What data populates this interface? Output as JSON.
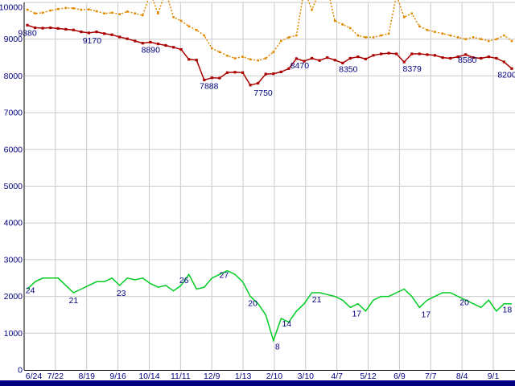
{
  "colors": {
    "background": "#ffffff",
    "grid": "#c9c9c9",
    "axis": "#000000",
    "tick_text": "#000080",
    "label_text": "#000080",
    "bottom_bar": "#000080"
  },
  "chart_data": {
    "type": "line",
    "title": "",
    "xlabel": "",
    "ylabel": "",
    "ylim": [
      0,
      10000
    ],
    "grid": true,
    "legend": "none",
    "yticks": [
      0,
      1000,
      2000,
      3000,
      4000,
      5000,
      6000,
      7000,
      8000,
      9000,
      10000
    ],
    "ytick_labels": [
      "0",
      "1000",
      "2000",
      "3000",
      "4000",
      "5000",
      "6000",
      "7000",
      "8000",
      "9000",
      "10000"
    ],
    "x_labels": [
      "6/24",
      "7/22",
      "8/19",
      "9/16",
      "10/14",
      "11/11",
      "12/9",
      "1/13",
      "2/10",
      "3/10",
      "4/7",
      "5/12",
      "6/9",
      "7/7",
      "8/4",
      "9/1"
    ],
    "series": [
      {
        "name": "upper-dashed-line",
        "color": "#e08a00",
        "style": "dashed",
        "marker": "square",
        "values": [
          9800,
          9700,
          9720,
          9780,
          9820,
          9850,
          9840,
          9800,
          9810,
          9760,
          9700,
          9720,
          9680,
          9750,
          9700,
          9650,
          10250,
          9700,
          10300,
          9600,
          9500,
          9350,
          9250,
          9100,
          8750,
          8650,
          8550,
          8480,
          8520,
          8450,
          8420,
          8480,
          8650,
          8950,
          9050,
          9100,
          10350,
          9800,
          10300,
          10400,
          9500,
          9400,
          9300,
          9100,
          9050,
          9050,
          9100,
          9150,
          10200,
          9600,
          9700,
          9350,
          9250,
          9200,
          9150,
          9100,
          9050,
          9000,
          9050,
          9000,
          8950,
          9000,
          9100,
          8950
        ],
        "labels": []
      },
      {
        "name": "main-line",
        "color": "#aa0000",
        "style": "solid",
        "marker": "square",
        "values": [
          9380,
          9310,
          9300,
          9310,
          9290,
          9270,
          9250,
          9200,
          9170,
          9200,
          9150,
          9120,
          9060,
          9010,
          8950,
          8890,
          8920,
          8870,
          8830,
          8780,
          8720,
          8450,
          8430,
          7888,
          7950,
          7940,
          8090,
          8100,
          8090,
          7750,
          7800,
          8050,
          8060,
          8110,
          8200,
          8470,
          8400,
          8480,
          8420,
          8500,
          8430,
          8350,
          8480,
          8520,
          8460,
          8560,
          8600,
          8620,
          8600,
          8379,
          8600,
          8600,
          8580,
          8560,
          8500,
          8480,
          8520,
          8580,
          8500,
          8480,
          8520,
          8480,
          8380,
          8200
        ],
        "labels": [
          {
            "index": 0,
            "text": "9380",
            "dx": 0,
            "dy": 13
          },
          {
            "index": 8,
            "text": "9170",
            "dx": 4,
            "dy": 13
          },
          {
            "index": 15,
            "text": "8890",
            "dx": 10,
            "dy": 12
          },
          {
            "index": 23,
            "text": "7888",
            "dx": 6,
            "dy": 11
          },
          {
            "index": 29,
            "text": "7750",
            "dx": 16,
            "dy": 13
          },
          {
            "index": 35,
            "text": "8470",
            "dx": 4,
            "dy": 12
          },
          {
            "index": 41,
            "text": "8350",
            "dx": 7,
            "dy": 11
          },
          {
            "index": 49,
            "text": "8379",
            "dx": 10,
            "dy": 12
          },
          {
            "index": 57,
            "text": "8580",
            "dx": 2,
            "dy": 10
          },
          {
            "index": 63,
            "text": "8200",
            "dx": -6,
            "dy": 11
          }
        ]
      },
      {
        "name": "lower-line",
        "color": "#00cc22",
        "style": "solid",
        "marker": "none",
        "values": [
          2200,
          2400,
          2500,
          2500,
          2500,
          2300,
          2100,
          2200,
          2300,
          2400,
          2400,
          2500,
          2300,
          2500,
          2450,
          2500,
          2350,
          2250,
          2300,
          2150,
          2300,
          2600,
          2200,
          2250,
          2500,
          2600,
          2700,
          2600,
          2400,
          2000,
          1800,
          1500,
          800,
          1400,
          1300,
          1600,
          1800,
          2100,
          2100,
          2050,
          2000,
          1900,
          1700,
          1800,
          1600,
          1900,
          2000,
          2000,
          2100,
          2200,
          2000,
          1700,
          1900,
          2000,
          2100,
          2100,
          2000,
          1900,
          1800,
          1700,
          1900,
          1600,
          1800,
          1800
        ],
        "labels": [
          {
            "index": 1,
            "text": "24",
            "dx": -6,
            "dy": 14
          },
          {
            "index": 6,
            "text": "21",
            "dx": 0,
            "dy": 13
          },
          {
            "index": 12,
            "text": "23",
            "dx": 2,
            "dy": 13
          },
          {
            "index": 21,
            "text": "26",
            "dx": -6,
            "dy": 11
          },
          {
            "index": 26,
            "text": "27",
            "dx": -4,
            "dy": 9
          },
          {
            "index": 29,
            "text": "20",
            "dx": 3,
            "dy": 12
          },
          {
            "index": 32,
            "text": "8",
            "dx": 5,
            "dy": 11
          },
          {
            "index": 33,
            "text": "14",
            "dx": 7,
            "dy": 10
          },
          {
            "index": 37,
            "text": "21",
            "dx": 6,
            "dy": 12
          },
          {
            "index": 42,
            "text": "17",
            "dx": 8,
            "dy": 11
          },
          {
            "index": 51,
            "text": "17",
            "dx": 8,
            "dy": 12
          },
          {
            "index": 56,
            "text": "20",
            "dx": 8,
            "dy": 11
          },
          {
            "index": 62,
            "text": "18",
            "dx": 4,
            "dy": 11
          }
        ]
      }
    ]
  }
}
